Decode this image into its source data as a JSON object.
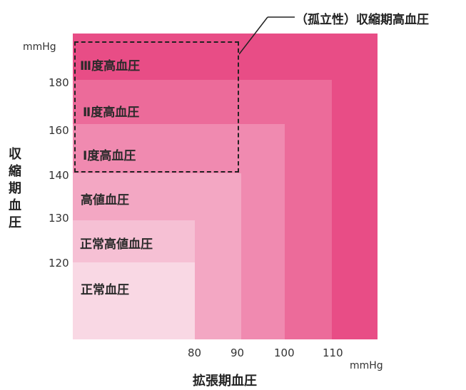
{
  "isolated_label": "（孤立性）収縮期高血圧",
  "y_axis": {
    "unit": "mmHg",
    "label": "収縮期血圧",
    "ticks": [
      "180",
      "160",
      "140",
      "130",
      "120"
    ]
  },
  "x_axis": {
    "unit": "mmHg",
    "label": "拡張期血圧",
    "ticks": [
      "80",
      "90",
      "100",
      "110"
    ]
  },
  "zones": [
    {
      "label": "Ⅲ度高血圧",
      "color": "#e84d86"
    },
    {
      "label": "Ⅱ度高血圧",
      "color": "#ec6b9a"
    },
    {
      "label": "Ⅰ度高血圧",
      "color": "#f08ab0"
    },
    {
      "label": "高値血圧",
      "color": "#f3a7c3"
    },
    {
      "label": "正常高値血圧",
      "color": "#f6c0d4"
    },
    {
      "label": "正常血圧",
      "color": "#f9d8e4"
    }
  ]
}
